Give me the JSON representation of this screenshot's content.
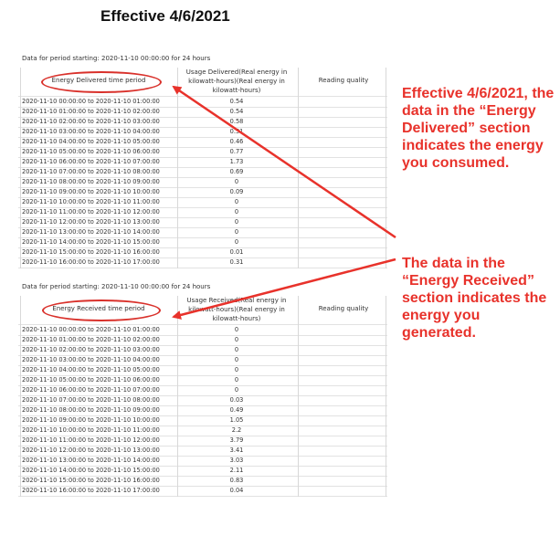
{
  "title": "Effective 4/6/2021",
  "delivered": {
    "period_text": "Data for period starting: 2020-11-10 00:00:00  for 24 hours",
    "col_period": "Energy  Delivered time period",
    "col_usage_lines": [
      "Usage Delivered(Real energy in",
      "kilowatt-hours)(Real energy in",
      "kilowatt-hours)"
    ],
    "col_quality": "Reading quality",
    "rows": [
      {
        "period": "2020-11-10 00:00:00 to 2020-11-10 01:00:00",
        "value": "0.54"
      },
      {
        "period": "2020-11-10 01:00:00 to 2020-11-10 02:00:00",
        "value": "0.54"
      },
      {
        "period": "2020-11-10 02:00:00 to 2020-11-10 03:00:00",
        "value": "0.58"
      },
      {
        "period": "2020-11-10 03:00:00 to 2020-11-10 04:00:00",
        "value": "0.51"
      },
      {
        "period": "2020-11-10 04:00:00 to 2020-11-10 05:00:00",
        "value": "0.46"
      },
      {
        "period": "2020-11-10 05:00:00 to 2020-11-10 06:00:00",
        "value": "0.77"
      },
      {
        "period": "2020-11-10 06:00:00 to 2020-11-10 07:00:00",
        "value": "1.73"
      },
      {
        "period": "2020-11-10 07:00:00 to 2020-11-10 08:00:00",
        "value": "0.69"
      },
      {
        "period": "2020-11-10 08:00:00 to 2020-11-10 09:00:00",
        "value": "0"
      },
      {
        "period": "2020-11-10 09:00:00 to 2020-11-10 10:00:00",
        "value": "0.09"
      },
      {
        "period": "2020-11-10 10:00:00 to 2020-11-10 11:00:00",
        "value": "0"
      },
      {
        "period": "2020-11-10 11:00:00 to 2020-11-10 12:00:00",
        "value": "0"
      },
      {
        "period": "2020-11-10 12:00:00 to 2020-11-10 13:00:00",
        "value": "0"
      },
      {
        "period": "2020-11-10 13:00:00 to 2020-11-10 14:00:00",
        "value": "0"
      },
      {
        "period": "2020-11-10 14:00:00 to 2020-11-10 15:00:00",
        "value": "0"
      },
      {
        "period": "2020-11-10 15:00:00 to 2020-11-10 16:00:00",
        "value": "0.01"
      },
      {
        "period": "2020-11-10 16:00:00 to 2020-11-10 17:00:00",
        "value": "0.31"
      }
    ]
  },
  "received": {
    "period_text": "Data for period starting: 2020-11-10 00:00:00  for 24 hours",
    "col_period": "Energy  Received time period",
    "col_usage_lines": [
      "Usage Received(Real energy in",
      "kilowatt-hours)(Real energy in",
      "kilowatt-hours)"
    ],
    "col_quality": "Reading quality",
    "rows": [
      {
        "period": "2020-11-10 00:00:00 to 2020-11-10 01:00:00",
        "value": "0"
      },
      {
        "period": "2020-11-10 01:00:00 to 2020-11-10 02:00:00",
        "value": "0"
      },
      {
        "period": "2020-11-10 02:00:00 to 2020-11-10 03:00:00",
        "value": "0"
      },
      {
        "period": "2020-11-10 03:00:00 to 2020-11-10 04:00:00",
        "value": "0"
      },
      {
        "period": "2020-11-10 04:00:00 to 2020-11-10 05:00:00",
        "value": "0"
      },
      {
        "period": "2020-11-10 05:00:00 to 2020-11-10 06:00:00",
        "value": "0"
      },
      {
        "period": "2020-11-10 06:00:00 to 2020-11-10 07:00:00",
        "value": "0"
      },
      {
        "period": "2020-11-10 07:00:00 to 2020-11-10 08:00:00",
        "value": "0.03"
      },
      {
        "period": "2020-11-10 08:00:00 to 2020-11-10 09:00:00",
        "value": "0.49"
      },
      {
        "period": "2020-11-10 09:00:00 to 2020-11-10 10:00:00",
        "value": "1.05"
      },
      {
        "period": "2020-11-10 10:00:00 to 2020-11-10 11:00:00",
        "value": "2.2"
      },
      {
        "period": "2020-11-10 11:00:00 to 2020-11-10 12:00:00",
        "value": "3.79"
      },
      {
        "period": "2020-11-10 12:00:00 to 2020-11-10 13:00:00",
        "value": "3.41"
      },
      {
        "period": "2020-11-10 13:00:00 to 2020-11-10 14:00:00",
        "value": "3.03"
      },
      {
        "period": "2020-11-10 14:00:00 to 2020-11-10 15:00:00",
        "value": "2.11"
      },
      {
        "period": "2020-11-10 15:00:00 to 2020-11-10 16:00:00",
        "value": "0.83"
      },
      {
        "period": "2020-11-10 16:00:00 to 2020-11-10 17:00:00",
        "value": "0.04"
      }
    ]
  },
  "note_delivered": "Effective 4/6/2021, the data in the “Energy Delivered” section indicates the energy you consumed.",
  "note_received": "The data in the “Energy Received” section indicates the energy you generated.",
  "colors": {
    "annotation": "#e8322b",
    "ellipse": "#d9312b"
  }
}
